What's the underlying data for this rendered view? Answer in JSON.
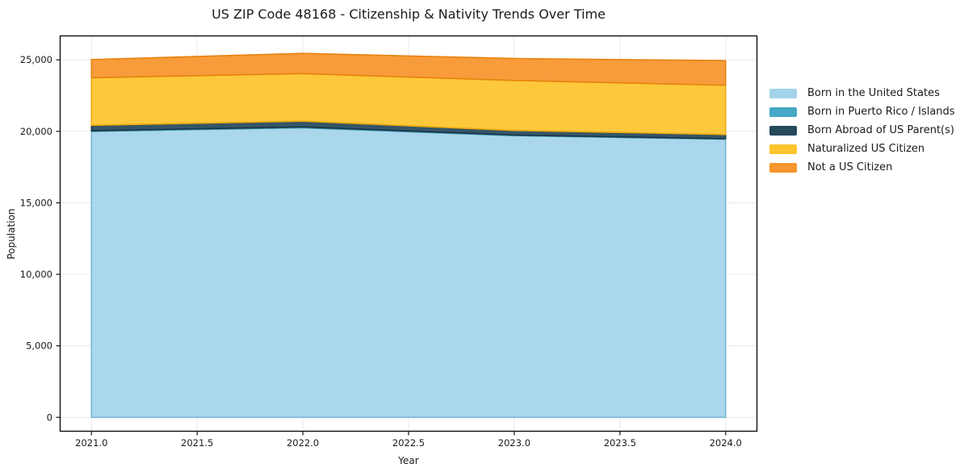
{
  "page": {
    "background": "#ffffff"
  },
  "chart_data": {
    "type": "area",
    "stacked": true,
    "title": "US ZIP Code 48168 - Citizenship & Nativity Trends Over Time",
    "xlabel": "Year",
    "ylabel": "Population",
    "x": [
      2021,
      2022,
      2023,
      2024
    ],
    "series": [
      {
        "name": "Born in the United States",
        "color": "#a4d4e9",
        "edge_color": "#7ab6d3",
        "values": [
          20000,
          20250,
          19700,
          19450
        ]
      },
      {
        "name": "Born in Puerto Rico / Islands",
        "color": "#46a8c4",
        "edge_color": "#338fab",
        "values": [
          40,
          60,
          40,
          30
        ]
      },
      {
        "name": "Born Abroad of US Parent(s)",
        "color": "#26495c",
        "edge_color": "#1b3645",
        "values": [
          380,
          400,
          320,
          290
        ]
      },
      {
        "name": "Naturalized US Citizen",
        "color": "#fdc42d",
        "edge_color": "#edaa0e",
        "values": [
          3330,
          3330,
          3500,
          3450
        ]
      },
      {
        "name": "Not a US Citizen",
        "color": "#f8952c",
        "edge_color": "#e8820f",
        "values": [
          1270,
          1410,
          1530,
          1720
        ]
      }
    ],
    "x_ticks": {
      "values": [
        2021.0,
        2021.5,
        2022.0,
        2022.5,
        2023.0,
        2023.5,
        2024.0
      ],
      "labels": [
        "2021.0",
        "2021.5",
        "2022.0",
        "2022.5",
        "2023.0",
        "2023.5",
        "2024.0"
      ]
    },
    "y_ticks": {
      "values": [
        0,
        5000,
        10000,
        15000,
        20000,
        25000
      ],
      "labels": [
        "0",
        "5,000",
        "10,000",
        "15,000",
        "20,000",
        "25,000"
      ]
    },
    "xlim": [
      2020.85,
      2024.15
    ],
    "ylim": [
      -1000,
      26700
    ],
    "grid": true,
    "grid_color": "#e8e8e8",
    "spine_color": "#111111",
    "tick_label_color": "#1a1a1a",
    "fill_opacity": 0.93,
    "legend_position": "right-outside"
  }
}
